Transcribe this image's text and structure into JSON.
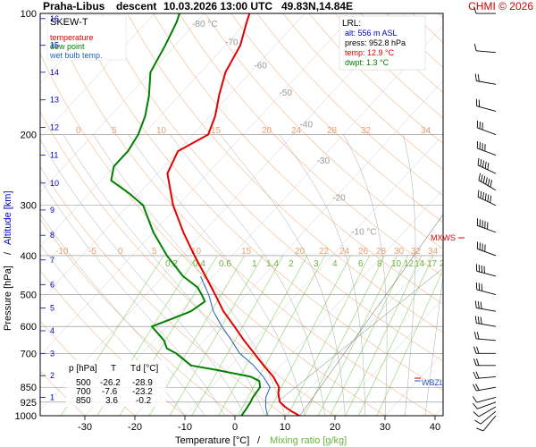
{
  "title": {
    "station": "Praha-Libus",
    "kind": "descent",
    "datetime": "10.03.2026 13:00 UTC",
    "coords": "49.83N,14.84E",
    "copyright": "CHMI © 2026"
  },
  "legend": {
    "skewt": "SKEW-T",
    "temperature": "temperature",
    "dew_point": "dew point",
    "wet_bulb": "wet bulb temp."
  },
  "lrl": {
    "header": "LRL:",
    "alt": "alt: 556 m ASL",
    "press": "press: 952.8 hPa",
    "temp": "temp: 12.9 °C",
    "dwpt": "dwpt: 1.3 °C"
  },
  "table": {
    "headers": [
      "p [hPa]",
      "T",
      "Td [°C]"
    ],
    "rows": [
      [
        "500",
        "-26.2",
        "-28.9"
      ],
      [
        "700",
        "-7.6",
        "-23.2"
      ],
      [
        "850",
        "3.6",
        "-0.2"
      ]
    ]
  },
  "labels": {
    "mxws": "MXWS",
    "wbzl": "WBZL"
  },
  "axes": {
    "ylabel_pressure": "Pressure [hPa]",
    "ylabel_sep": "/",
    "ylabel_altitude": "Altitude [km]",
    "xlabel_temp": "Temperature [°C]",
    "xlabel_sep": "/",
    "xlabel_mix": "Mixing ratio [g/kg]"
  },
  "colors": {
    "temperature": "#e00000",
    "dew_point": "#008000",
    "wet_bulb": "#2060c0",
    "altitude": "#0000c0",
    "dry_adiabat": "#f0b890",
    "isotherm_label": "#e8a070",
    "moist_adiabat": "#aaaaaa",
    "mixing_ratio": "#8fcf6a",
    "mixing_label": "#6db33f",
    "grid": "#888888",
    "wind": "#000000"
  },
  "chart_data": {
    "type": "line",
    "x_axis": {
      "label": "Temperature [°C]",
      "ticks": [
        -30,
        -20,
        -10,
        0,
        10,
        20,
        30,
        40
      ],
      "range": [
        -38,
        52
      ]
    },
    "y_axis": {
      "label": "Pressure [hPa]",
      "scale": "log",
      "ticks": [
        1000,
        925,
        850,
        700,
        600,
        500,
        400,
        300,
        200,
        100
      ],
      "range": [
        1000,
        100
      ]
    },
    "altitude_km_ticks": [
      1,
      2,
      3,
      4,
      5,
      6,
      7,
      8,
      9,
      10,
      11,
      12,
      13,
      14,
      15,
      16
    ],
    "altitude_km_pressure": [
      900,
      795,
      700,
      615,
      540,
      472,
      410,
      356,
      308,
      264,
      225,
      192,
      164,
      140,
      120,
      103
    ],
    "isotherm_labels_upper": [
      {
        "t": -80,
        "p": 108,
        "text": "-80 °C"
      },
      {
        "t": -70,
        "p": 120,
        "text": "-70"
      },
      {
        "t": -60,
        "p": 137,
        "text": "-60"
      },
      {
        "t": -50,
        "p": 160,
        "text": "-50"
      },
      {
        "t": -40,
        "p": 192,
        "text": "-40"
      },
      {
        "t": -30,
        "p": 236,
        "text": "-30"
      },
      {
        "t": -20,
        "p": 292,
        "text": "-20"
      },
      {
        "t": -10,
        "p": 355,
        "text": "-10 °C"
      }
    ],
    "dry_adiabat_labels_200": [
      "0",
      "5",
      "10",
      "15",
      "20",
      "24",
      "28",
      "32",
      "34"
    ],
    "dry_adiabat_labels_400": [
      "-10",
      "-5",
      "0",
      "5",
      "10",
      "15",
      "20",
      "22",
      "24",
      "26",
      "28",
      "30",
      "32",
      "34"
    ],
    "mixing_ratio_labels": [
      "0.2",
      "0.4",
      "0.6",
      "1",
      "1.4",
      "2",
      "3",
      "4",
      "6",
      "8",
      "10",
      "12",
      "14",
      "17",
      "20",
      "25"
    ],
    "mixing_ratio_values": [
      0.2,
      0.4,
      0.6,
      1,
      1.4,
      2,
      3,
      4,
      6,
      8,
      10,
      12,
      14,
      17,
      20,
      25
    ],
    "series": [
      {
        "name": "temperature",
        "points": [
          [
            1000,
            12.9
          ],
          [
            975,
            10.5
          ],
          [
            952,
            8.5
          ],
          [
            925,
            6.5
          ],
          [
            900,
            5.4
          ],
          [
            875,
            4.4
          ],
          [
            850,
            3.6
          ],
          [
            800,
            0.5
          ],
          [
            750,
            -3.5
          ],
          [
            700,
            -7.6
          ],
          [
            650,
            -12
          ],
          [
            600,
            -16.5
          ],
          [
            550,
            -21.5
          ],
          [
            500,
            -26.2
          ],
          [
            450,
            -31.5
          ],
          [
            400,
            -37.5
          ],
          [
            350,
            -44
          ],
          [
            300,
            -51
          ],
          [
            250,
            -58
          ],
          [
            220,
            -60
          ],
          [
            200,
            -57
          ],
          [
            180,
            -59
          ],
          [
            160,
            -62
          ],
          [
            140,
            -65
          ],
          [
            120,
            -67
          ],
          [
            105,
            -70
          ],
          [
            100,
            -71
          ]
        ]
      },
      {
        "name": "dew point",
        "points": [
          [
            1000,
            1.3
          ],
          [
            960,
            1.0
          ],
          [
            925,
            0.6
          ],
          [
            900,
            0.2
          ],
          [
            875,
            0.0
          ],
          [
            850,
            -0.2
          ],
          [
            820,
            -1.5
          ],
          [
            800,
            -4
          ],
          [
            770,
            -12
          ],
          [
            750,
            -18
          ],
          [
            700,
            -23.2
          ],
          [
            680,
            -26
          ],
          [
            650,
            -28
          ],
          [
            600,
            -33
          ],
          [
            570,
            -30
          ],
          [
            550,
            -28
          ],
          [
            520,
            -27
          ],
          [
            500,
            -28.9
          ],
          [
            480,
            -31
          ],
          [
            450,
            -36
          ],
          [
            400,
            -43
          ],
          [
            350,
            -50
          ],
          [
            300,
            -57
          ],
          [
            280,
            -62
          ],
          [
            260,
            -68
          ],
          [
            240,
            -70
          ],
          [
            220,
            -70
          ],
          [
            200,
            -71
          ],
          [
            180,
            -73
          ],
          [
            160,
            -76
          ],
          [
            140,
            -80
          ],
          [
            120,
            -82
          ],
          [
            105,
            -84
          ],
          [
            100,
            -85
          ]
        ]
      },
      {
        "name": "wet bulb temp.",
        "points": [
          [
            1000,
            6.5
          ],
          [
            950,
            4.5
          ],
          [
            900,
            2.8
          ],
          [
            850,
            1.8
          ],
          [
            800,
            -1.5
          ],
          [
            750,
            -5.5
          ],
          [
            700,
            -10.5
          ],
          [
            650,
            -14.5
          ],
          [
            600,
            -19
          ],
          [
            550,
            -23.5
          ],
          [
            500,
            -27.5
          ],
          [
            450,
            -32.5
          ]
        ]
      }
    ],
    "wind_profile_pressure": [
      1000,
      975,
      950,
      925,
      900,
      850,
      800,
      750,
      700,
      650,
      600,
      550,
      500,
      450,
      400,
      350,
      300,
      275,
      250,
      225,
      200,
      175,
      150,
      125,
      100
    ],
    "wind_profile_dir_deg": [
      220,
      230,
      240,
      250,
      255,
      260,
      265,
      270,
      270,
      275,
      280,
      280,
      285,
      285,
      290,
      290,
      295,
      300,
      295,
      290,
      290,
      285,
      280,
      275,
      270
    ],
    "wind_profile_speed_kt": [
      5,
      5,
      10,
      10,
      10,
      15,
      15,
      15,
      20,
      20,
      25,
      25,
      30,
      35,
      40,
      45,
      55,
      60,
      50,
      40,
      30,
      20,
      15,
      10,
      10
    ]
  }
}
